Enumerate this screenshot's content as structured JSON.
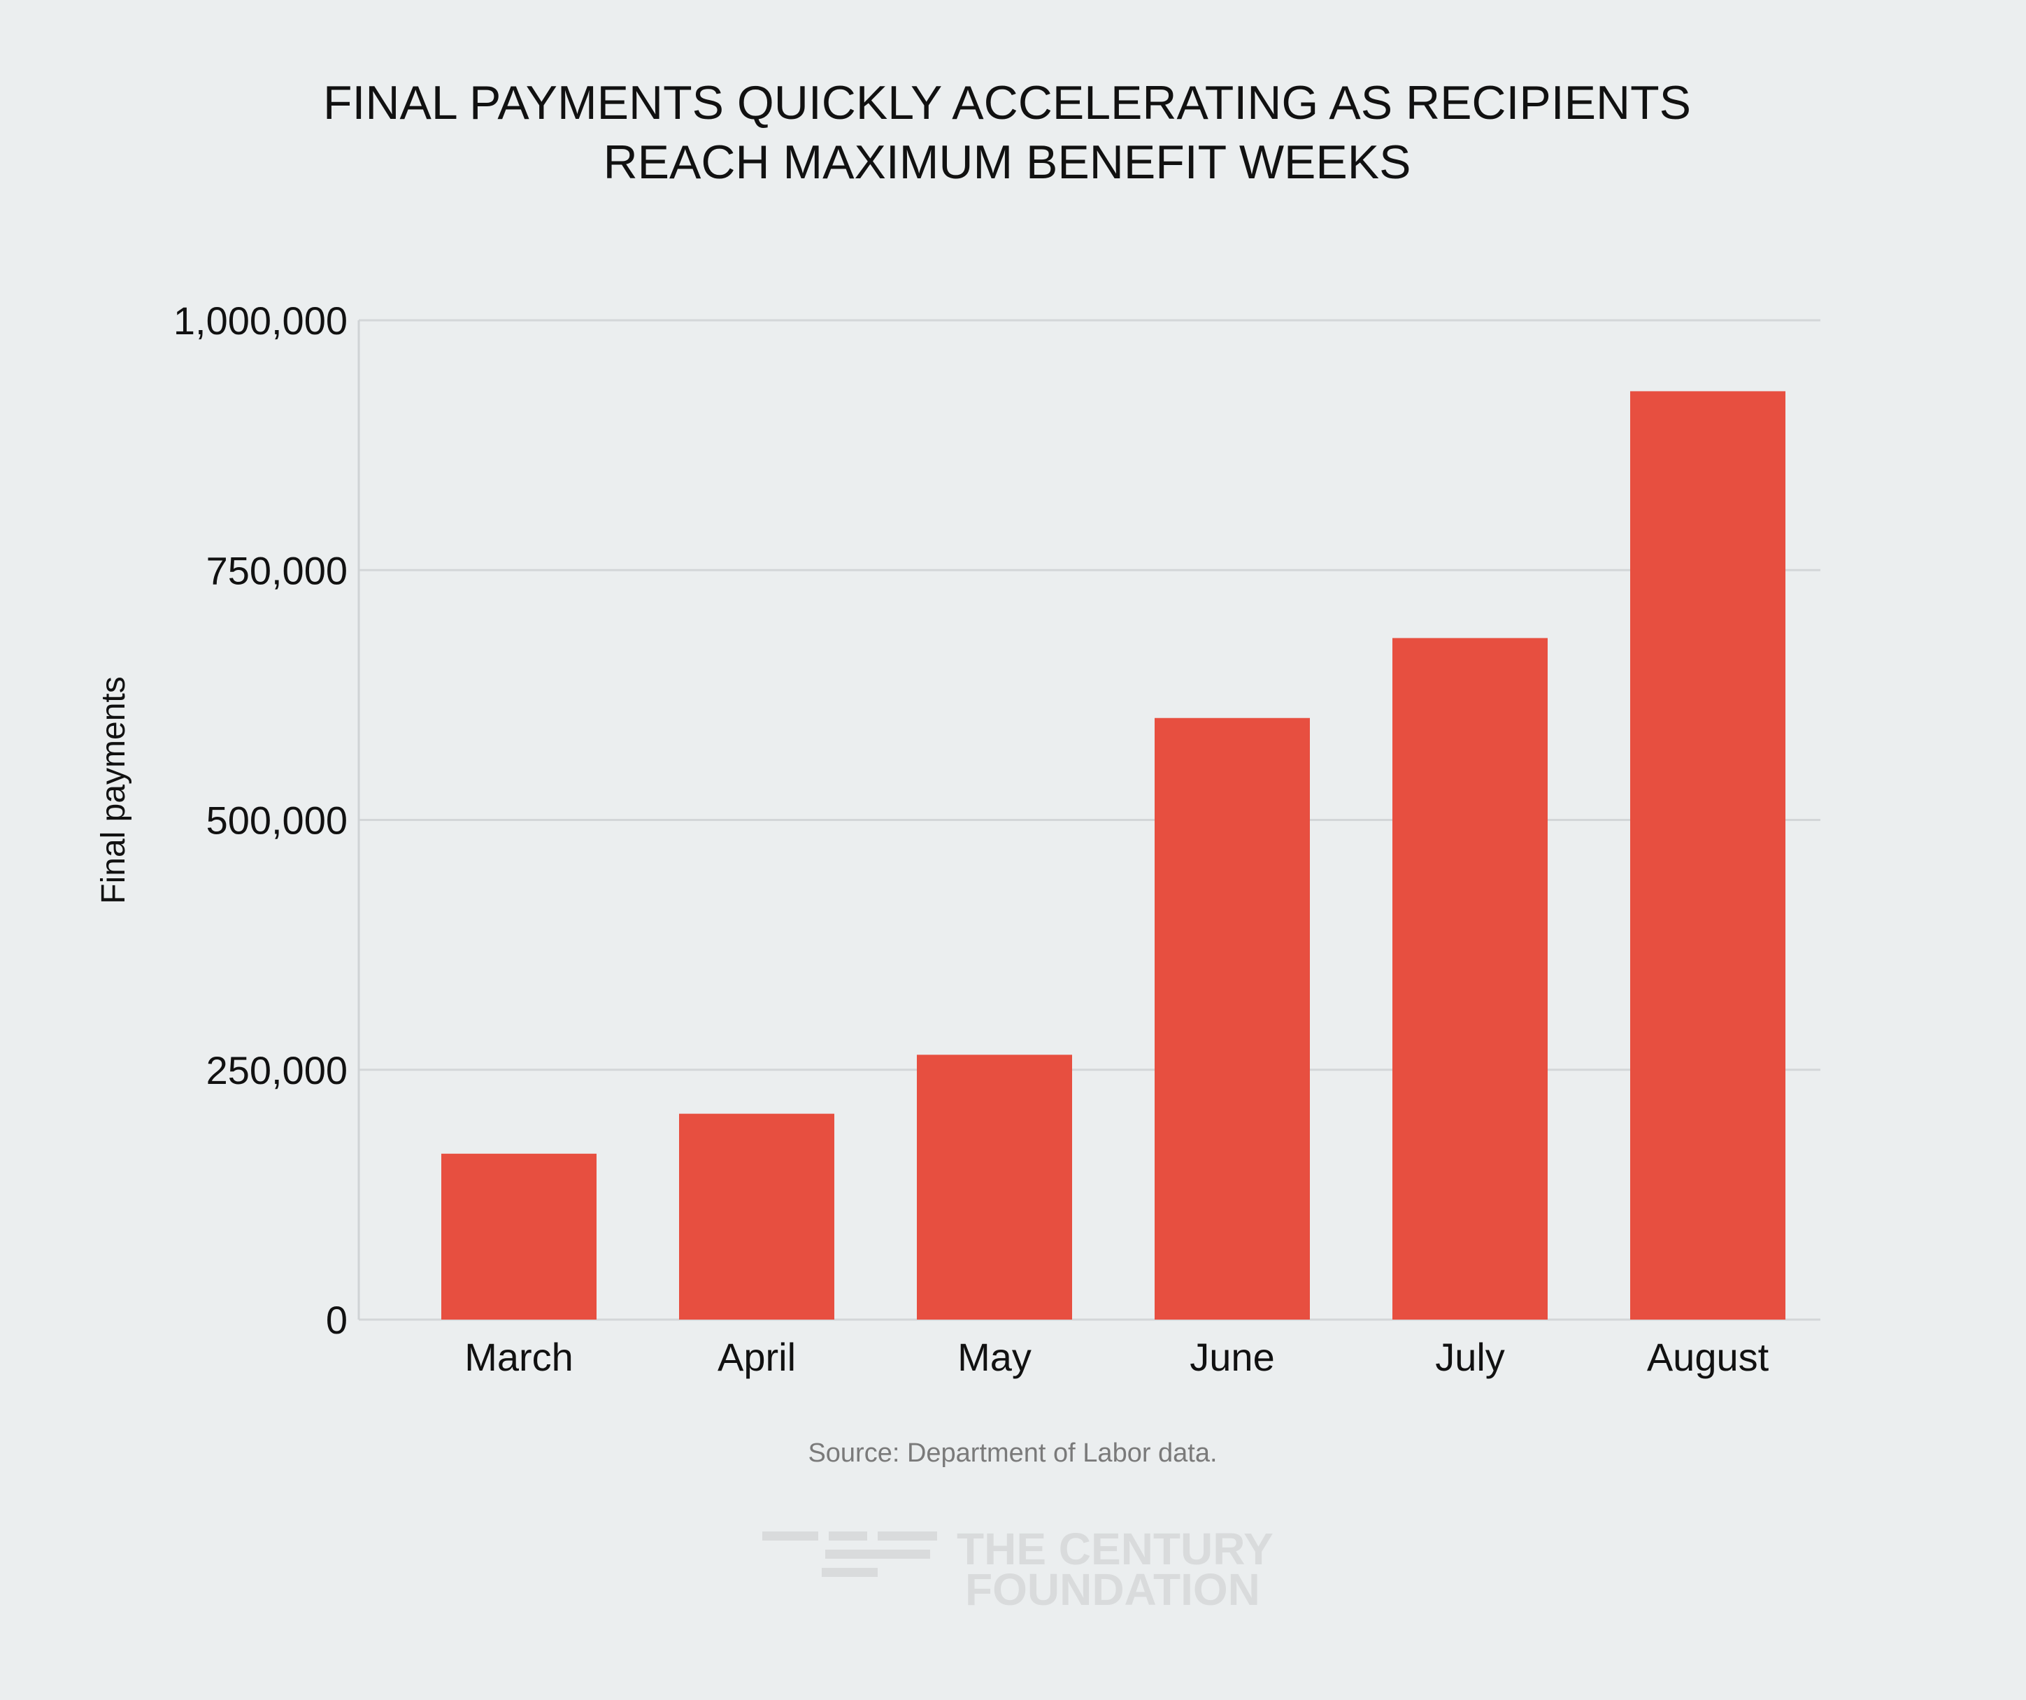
{
  "chart_data": {
    "type": "bar",
    "title_lines": [
      "FINAL PAYMENTS QUICKLY ACCELERATING AS RECIPIENTS",
      "REACH MAXIMUM BENEFIT WEEKS"
    ],
    "categories": [
      "March",
      "April",
      "May",
      "June",
      "July",
      "August"
    ],
    "values": [
      166000,
      206000,
      265000,
      602000,
      682000,
      929000
    ],
    "ylabel": "Final payments",
    "xlabel": "",
    "ylim": [
      0,
      1000000
    ],
    "yticks": [
      0,
      250000,
      500000,
      750000,
      1000000
    ],
    "ytick_labels": [
      "0",
      "250,000",
      "500,000",
      "750,000",
      "1,000,000"
    ],
    "grid": true,
    "bar_color": "#e74f40",
    "grid_color": "#d3d6d8",
    "source": "Source: Department of Labor data."
  },
  "logo": {
    "line1": "THE CENTURY",
    "line2": "FOUNDATION",
    "color": "#d9dbdc"
  }
}
